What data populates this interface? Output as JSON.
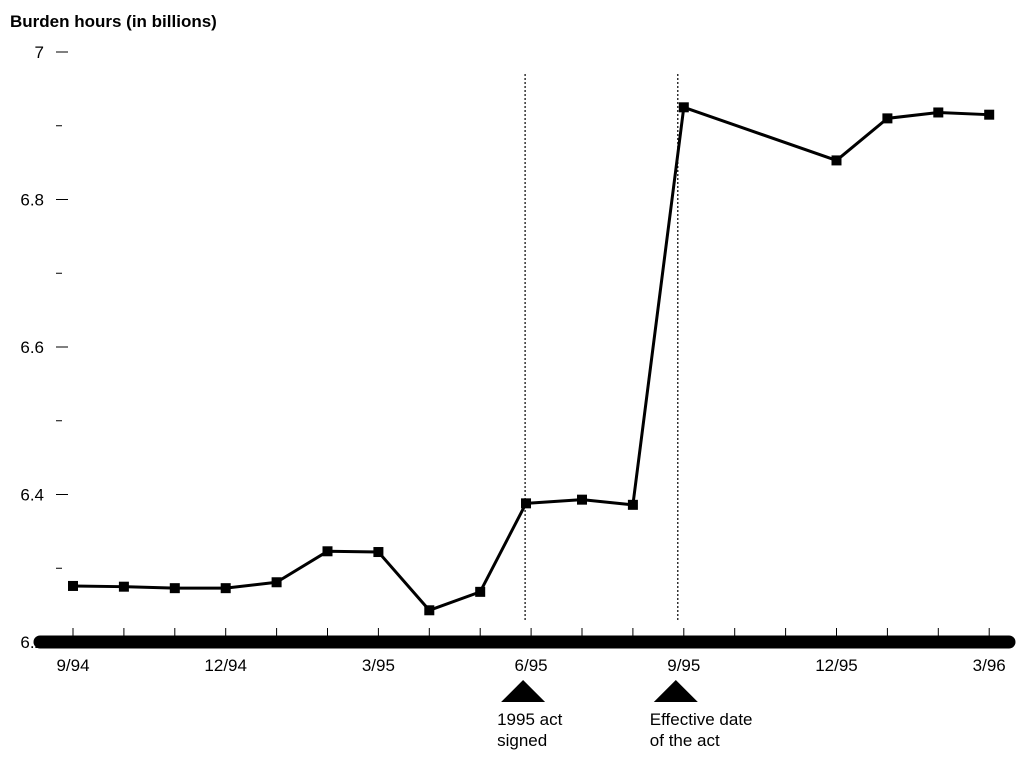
{
  "chart_data": {
    "type": "line",
    "title": "",
    "ylabel": "Burden hours (in billions)",
    "xlabel": "",
    "ylim": [
      6.2,
      7
    ],
    "y_ticks_major": [
      "6.2",
      "6.4",
      "6.6",
      "6.8",
      "7"
    ],
    "y_ticks_minor": [
      6.3,
      6.5,
      6.7,
      6.9
    ],
    "x_months": [
      "9/94",
      "10/94",
      "11/94",
      "12/94",
      "1/95",
      "2/95",
      "3/95",
      "4/95",
      "5/95",
      "6/95",
      "7/95",
      "8/95",
      "9/95",
      "10/95",
      "11/95",
      "12/95",
      "1/96",
      "2/96",
      "3/96"
    ],
    "x_tick_labels": [
      {
        "month": "9/94",
        "label": "9/94"
      },
      {
        "month": "12/94",
        "label": "12/94"
      },
      {
        "month": "3/95",
        "label": "3/95"
      },
      {
        "month": "6/95",
        "label": "6/95"
      },
      {
        "month": "9/95",
        "label": "9/95"
      },
      {
        "month": "12/95",
        "label": "12/95"
      },
      {
        "month": "3/96",
        "label": "3/96"
      }
    ],
    "series": [
      {
        "points": [
          {
            "x": "9/94",
            "y": 6.276
          },
          {
            "x": "10/94",
            "y": 6.275
          },
          {
            "x": "11/94",
            "y": 6.273
          },
          {
            "x": "12/94",
            "y": 6.273
          },
          {
            "x": "1/95",
            "y": 6.281
          },
          {
            "x": "2/95",
            "y": 6.323
          },
          {
            "x": "3/95",
            "y": 6.322
          },
          {
            "x": "4/95",
            "y": 6.243
          },
          {
            "x": "5/95",
            "y": 6.268
          },
          {
            "x": "5.9/95",
            "y": 6.388
          },
          {
            "x": "7/95",
            "y": 6.393
          },
          {
            "x": "8/95",
            "y": 6.386
          },
          {
            "x": "9/95",
            "y": 6.925
          },
          {
            "x": "12/95",
            "y": 6.853
          },
          {
            "x": "1/96",
            "y": 6.91
          },
          {
            "x": "2/96",
            "y": 6.918
          },
          {
            "x": "3/96",
            "y": 6.915
          }
        ]
      }
    ],
    "vertical_reference_lines": [
      "6/95",
      "9/95"
    ],
    "annotations": [
      {
        "month": "6/95",
        "line1": "1995 act",
        "line2": "signed"
      },
      {
        "month": "9/95",
        "line1": "Effective date",
        "line2": "of the act"
      }
    ],
    "grid": false,
    "legend": "none"
  }
}
